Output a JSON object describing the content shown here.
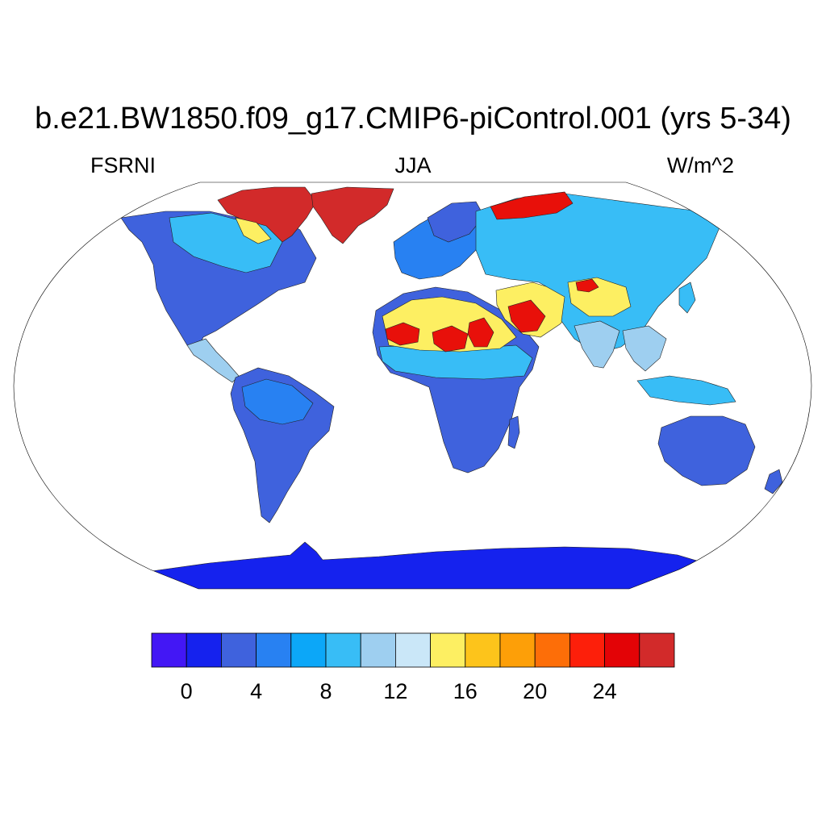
{
  "title": "b.e21.BW1850.f09_g17.CMIP6-piControl.001 (yrs 5-34)",
  "subtitle_left": "FSRNI",
  "subtitle_center": "JJA",
  "subtitle_right": "W/m^2",
  "map": {
    "projection": "Robinson",
    "land_colors": {
      "antarctica": "#1522ee",
      "default": "#3f62dd",
      "blue": "#2881f2",
      "light": "#38bdf6",
      "pale": "#9ecff0",
      "yellow": "#fdef62",
      "orange": "#fd9f08",
      "red": "#e8100a",
      "darkred": "#d22a2a"
    }
  },
  "colorbar": {
    "colors": [
      "#4317f5",
      "#1522ee",
      "#3f62dd",
      "#2881f2",
      "#0ca7f8",
      "#38bdf6",
      "#9ecff0",
      "#cae7f8",
      "#fdef62",
      "#fdc41b",
      "#fd9f08",
      "#fd6e08",
      "#fd1f0a",
      "#e30306",
      "#d22a2a"
    ],
    "levels": [
      0,
      2,
      4,
      6,
      8,
      10,
      12,
      14,
      16,
      18,
      20,
      22,
      24,
      26
    ],
    "tick_labels": [
      "0",
      "4",
      "8",
      "12",
      "16",
      "20",
      "24"
    ]
  }
}
